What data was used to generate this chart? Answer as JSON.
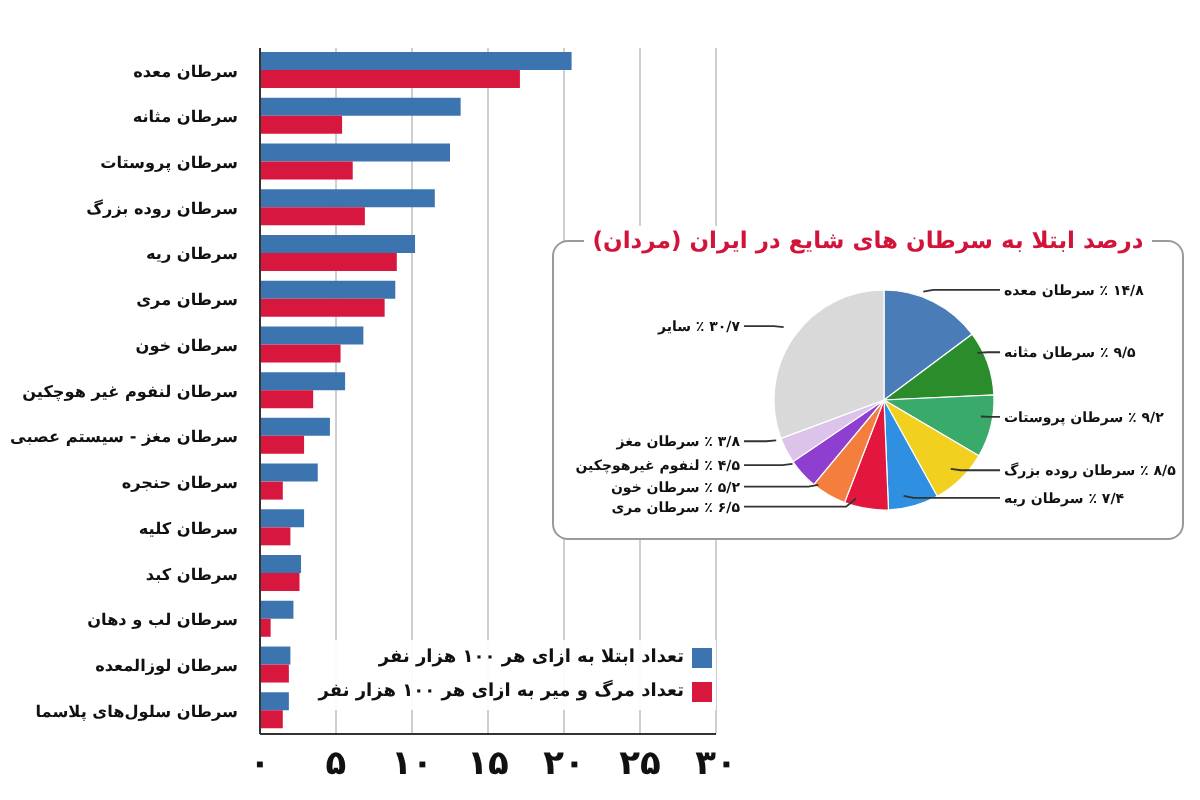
{
  "chart_data": [
    {
      "type": "bar",
      "orientation": "horizontal",
      "categories": [
        "سرطان معده",
        "سرطان مثانه",
        "سرطان پروستات",
        "سرطان روده بزرگ",
        "سرطان ریه",
        "سرطان مری",
        "سرطان خون",
        "سرطان لنفوم غیر هوچکین",
        "سرطان مغز - سیستم عصبی",
        "سرطان حنجره",
        "سرطان کلیه",
        "سرطان کبد",
        "سرطان لب و دهان",
        "سرطان لوزالمعده",
        "سرطان سلول‌های پلاسما"
      ],
      "series": [
        {
          "name": "تعداد ابتلا به ازای هر ۱۰۰ هزار نفر",
          "color": "#3c74b0",
          "values": [
            20.5,
            13.2,
            12.5,
            11.5,
            10.2,
            8.9,
            6.8,
            5.6,
            4.6,
            3.8,
            2.9,
            2.7,
            2.2,
            2.0,
            1.9
          ]
        },
        {
          "name": "تعداد مرگ و میر به ازای هر ۱۰۰ هزار نفر",
          "color": "#d8173f",
          "values": [
            17.1,
            5.4,
            6.1,
            6.9,
            9.0,
            8.2,
            5.3,
            3.5,
            2.9,
            1.5,
            2.0,
            2.6,
            0.7,
            1.9,
            1.5
          ]
        }
      ],
      "xlim": [
        0,
        30
      ],
      "xticks": [
        {
          "value": 0,
          "label": "۰"
        },
        {
          "value": 5,
          "label": "۵"
        },
        {
          "value": 10,
          "label": "۱۰"
        },
        {
          "value": 15,
          "label": "۱۵"
        },
        {
          "value": 20,
          "label": "۲۰"
        },
        {
          "value": 25,
          "label": "۲۵"
        },
        {
          "value": 30,
          "label": "۳۰"
        }
      ],
      "grid": "x",
      "legend": "bottom right"
    },
    {
      "type": "pie",
      "title": "درصد ابتلا به سرطان های شایع در ایران (مردان)",
      "categories": [
        "سرطان معده",
        "سرطان مثانه",
        "سرطان پروستات",
        "سرطان روده بزرگ",
        "سرطان ریه",
        "سرطان مری",
        "سرطان خون",
        "لنفوم غیرهوچکین",
        "سرطان مغز",
        "سایر"
      ],
      "values": [
        14.8,
        9.5,
        9.2,
        8.5,
        7.4,
        6.5,
        5.2,
        4.5,
        3.8,
        30.7
      ],
      "colors": [
        "#4a7db8",
        "#2a8c2a",
        "#3aaa6a",
        "#f2d01f",
        "#2f8fe0",
        "#e3173e",
        "#f47e3e",
        "#8e3fd0",
        "#dcc3e9",
        "#d9d9d9"
      ],
      "value_labels": [
        "۱۴/۸ ٪",
        "۹/۵ ٪",
        "۹/۲ ٪",
        "۸/۵ ٪",
        "۷/۴ ٪",
        "۶/۵ ٪",
        "۵/۲ ٪",
        "۴/۵ ٪",
        "۳/۸ ٪",
        "۳۰/۷ ٪"
      ]
    }
  ]
}
